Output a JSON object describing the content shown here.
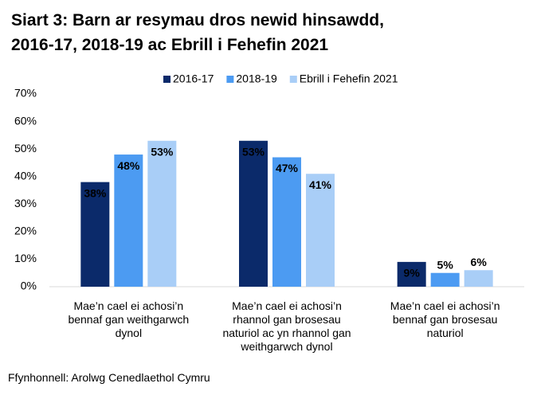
{
  "chart_data": {
    "type": "bar",
    "title": "Siart 3: Barn ar resymau dros newid hinsawdd,\n2016-17, 2018-19 ac Ebrill i Fehefin 2021",
    "categories": [
      "Mae’n cael ei achosi’n\nbennaf gan weithgarwch\ndynol",
      "Mae’n cael ei achosi’n\nrhannol gan brosesau\nnaturiol ac yn rhannol gan\nweithgarwch dynol",
      "Mae’n cael ei achosi’n\nbennaf gan brosesau\nnaturiol"
    ],
    "series": [
      {
        "name": "2016-17",
        "color": "#0b2a6a",
        "values": [
          38,
          53,
          9
        ],
        "value_labels": [
          "38%",
          "53%",
          "9%"
        ]
      },
      {
        "name": "2018-19",
        "color": "#4c9bf2",
        "values": [
          48,
          47,
          5
        ],
        "value_labels": [
          "48%",
          "47%",
          "5%"
        ]
      },
      {
        "name": "Ebrill i Fehefin 2021",
        "color": "#a9cef7",
        "values": [
          53,
          41,
          6
        ],
        "value_labels": [
          "53%",
          "41%",
          "6%"
        ]
      }
    ],
    "ylim": [
      0,
      70
    ],
    "yticks": [
      {
        "value": 0,
        "label": "0%"
      },
      {
        "value": 10,
        "label": "10%"
      },
      {
        "value": 20,
        "label": "20%"
      },
      {
        "value": 30,
        "label": "30%"
      },
      {
        "value": 40,
        "label": "40%"
      },
      {
        "value": 50,
        "label": "50%"
      },
      {
        "value": 60,
        "label": "60%"
      },
      {
        "value": 70,
        "label": "70%"
      }
    ],
    "legend": "top",
    "source": "Ffynhonnell: Arolwg Cenedlaethol Cymru"
  }
}
